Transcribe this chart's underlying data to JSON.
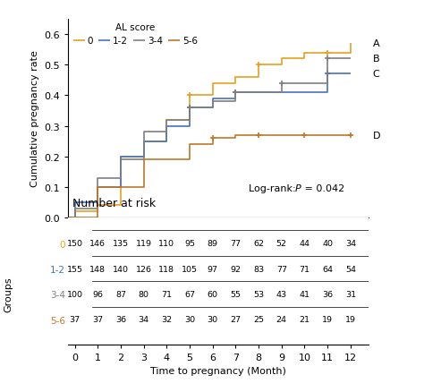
{
  "ylabel": "Cumulative pregnancy rate",
  "logrank_text": "Log-rank: ρ = 0.042",
  "logrank_display": "Log-rank: P = 0.042",
  "legend_title": "AL score",
  "group_labels": [
    "0",
    "1-2",
    "3-4",
    "5-6"
  ],
  "group_colors": [
    "#E8A020",
    "#4472C4",
    "#7F7F7F",
    "#C07828"
  ],
  "right_labels": [
    "A",
    "B",
    "C",
    "D"
  ],
  "ylim": [
    0.0,
    0.65
  ],
  "xlim": [
    -0.3,
    12.8
  ],
  "xticks": [
    0,
    1,
    2,
    3,
    4,
    5,
    6,
    7,
    8,
    9,
    10,
    11,
    12
  ],
  "yticks": [
    0.0,
    0.1,
    0.2,
    0.3,
    0.4,
    0.5,
    0.6
  ],
  "km_data": {
    "0": {
      "t": [
        0,
        1,
        2,
        3,
        4,
        5,
        6,
        7,
        8,
        9,
        10,
        11,
        12
      ],
      "v": [
        0.02,
        0.04,
        0.2,
        0.25,
        0.32,
        0.4,
        0.44,
        0.46,
        0.5,
        0.52,
        0.54,
        0.54,
        0.57
      ],
      "ct": [
        5,
        8,
        11
      ],
      "cv": [
        0.4,
        0.5,
        0.54
      ]
    },
    "1-2": {
      "t": [
        0,
        1,
        2,
        3,
        4,
        5,
        6,
        7,
        8,
        9,
        10,
        11,
        12
      ],
      "v": [
        0.05,
        0.1,
        0.2,
        0.25,
        0.3,
        0.36,
        0.39,
        0.41,
        0.41,
        0.41,
        0.41,
        0.47,
        0.47
      ],
      "ct": [
        5,
        7,
        11
      ],
      "cv": [
        0.36,
        0.41,
        0.47
      ]
    },
    "3-4": {
      "t": [
        0,
        1,
        2,
        3,
        4,
        5,
        6,
        7,
        8,
        9,
        10,
        11,
        12
      ],
      "v": [
        0.03,
        0.13,
        0.19,
        0.28,
        0.32,
        0.36,
        0.38,
        0.41,
        0.41,
        0.44,
        0.44,
        0.52,
        0.52
      ],
      "ct": [
        5,
        7,
        9,
        11
      ],
      "cv": [
        0.36,
        0.41,
        0.44,
        0.52
      ]
    },
    "5-6": {
      "t": [
        0,
        1,
        2,
        3,
        4,
        5,
        6,
        7,
        8,
        9,
        10,
        11,
        12
      ],
      "v": [
        0.0,
        0.1,
        0.1,
        0.19,
        0.19,
        0.24,
        0.26,
        0.27,
        0.27,
        0.27,
        0.27,
        0.27,
        0.27
      ],
      "ct": [
        6,
        8,
        10,
        12
      ],
      "cv": [
        0.26,
        0.27,
        0.27,
        0.27
      ]
    }
  },
  "risk_table": {
    "times": [
      0,
      1,
      2,
      3,
      4,
      5,
      6,
      7,
      8,
      9,
      10,
      11,
      12
    ],
    "values": [
      [
        150,
        146,
        135,
        119,
        110,
        95,
        89,
        77,
        62,
        52,
        44,
        40,
        34
      ],
      [
        155,
        148,
        140,
        126,
        118,
        105,
        97,
        92,
        83,
        77,
        71,
        64,
        54
      ],
      [
        100,
        96,
        87,
        80,
        71,
        67,
        60,
        55,
        53,
        43,
        41,
        36,
        31
      ],
      [
        37,
        37,
        36,
        34,
        32,
        30,
        30,
        27,
        25,
        24,
        21,
        19,
        19
      ]
    ]
  }
}
